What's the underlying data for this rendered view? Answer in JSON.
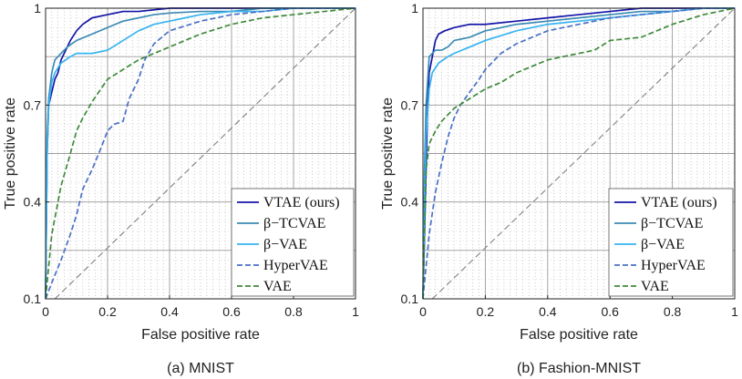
{
  "chart_data": [
    {
      "type": "line",
      "caption": "(a) MNIST",
      "xlabel": "False positive rate",
      "ylabel": "True positive rate",
      "xlim": [
        0,
        1
      ],
      "ylim": [
        0.1,
        1
      ],
      "xticks": [
        0,
        0.2,
        0.4,
        0.6,
        0.8,
        1
      ],
      "xtick_labels": [
        "0",
        "0.2",
        "0.4",
        "0.6",
        "0.8",
        "1"
      ],
      "yticks": [
        0.1,
        0.4,
        0.7,
        1
      ],
      "ytick_labels": [
        "0.1",
        "0.4",
        "0.7",
        "1"
      ],
      "grid": true,
      "legend_position": "bottom-right",
      "diagonal": true,
      "series": [
        {
          "name": "VTAE (ours)",
          "color": "#1414a8",
          "dash": "solid",
          "x": [
            0,
            0.005,
            0.01,
            0.02,
            0.03,
            0.04,
            0.05,
            0.06,
            0.08,
            0.1,
            0.12,
            0.15,
            0.2,
            0.25,
            0.3,
            0.4,
            0.5,
            0.6,
            0.7,
            0.8,
            0.9,
            1.0
          ],
          "y": [
            0.1,
            0.55,
            0.7,
            0.74,
            0.78,
            0.8,
            0.84,
            0.86,
            0.9,
            0.93,
            0.95,
            0.97,
            0.98,
            0.99,
            0.99,
            1.0,
            1.0,
            1.0,
            1.0,
            1.0,
            1.0,
            1.0
          ]
        },
        {
          "name": "β−TCVAE",
          "color": "#3c8ab4",
          "dash": "solid",
          "x": [
            0,
            0.005,
            0.01,
            0.02,
            0.03,
            0.05,
            0.07,
            0.1,
            0.15,
            0.2,
            0.25,
            0.3,
            0.35,
            0.4,
            0.5,
            0.6,
            0.7,
            0.8,
            0.9,
            1.0
          ],
          "y": [
            0.1,
            0.6,
            0.72,
            0.8,
            0.84,
            0.86,
            0.88,
            0.9,
            0.92,
            0.94,
            0.96,
            0.97,
            0.98,
            0.985,
            0.99,
            0.99,
            1.0,
            1.0,
            1.0,
            1.0
          ]
        },
        {
          "name": "β−VAE",
          "color": "#36b4f0",
          "dash": "solid",
          "x": [
            0,
            0.005,
            0.01,
            0.02,
            0.03,
            0.05,
            0.08,
            0.1,
            0.15,
            0.2,
            0.25,
            0.3,
            0.35,
            0.4,
            0.45,
            0.5,
            0.6,
            0.7,
            0.8,
            0.9,
            1.0
          ],
          "y": [
            0.1,
            0.55,
            0.7,
            0.77,
            0.8,
            0.83,
            0.85,
            0.86,
            0.86,
            0.87,
            0.9,
            0.93,
            0.95,
            0.96,
            0.97,
            0.98,
            0.99,
            0.99,
            1.0,
            1.0,
            1.0
          ]
        },
        {
          "name": "HyperVAE",
          "color": "#4a70c6",
          "dash": "dashed",
          "x": [
            0,
            0.02,
            0.05,
            0.08,
            0.1,
            0.12,
            0.15,
            0.18,
            0.2,
            0.22,
            0.25,
            0.27,
            0.3,
            0.32,
            0.35,
            0.4,
            0.5,
            0.6,
            0.7,
            0.8,
            0.9,
            1.0
          ],
          "y": [
            0.1,
            0.15,
            0.22,
            0.3,
            0.36,
            0.44,
            0.5,
            0.57,
            0.62,
            0.64,
            0.65,
            0.72,
            0.78,
            0.84,
            0.89,
            0.93,
            0.96,
            0.98,
            0.99,
            1.0,
            1.0,
            1.0
          ]
        },
        {
          "name": "VAE",
          "color": "#3e8a3a",
          "dash": "dashed",
          "x": [
            0,
            0.02,
            0.05,
            0.08,
            0.1,
            0.12,
            0.15,
            0.2,
            0.25,
            0.3,
            0.35,
            0.4,
            0.45,
            0.5,
            0.6,
            0.7,
            0.8,
            0.9,
            1.0
          ],
          "y": [
            0.1,
            0.3,
            0.45,
            0.55,
            0.62,
            0.66,
            0.71,
            0.78,
            0.81,
            0.84,
            0.86,
            0.88,
            0.9,
            0.92,
            0.95,
            0.97,
            0.98,
            0.99,
            1.0
          ]
        }
      ]
    },
    {
      "type": "line",
      "caption": "(b) Fashion-MNIST",
      "xlabel": "False positive rate",
      "ylabel": "True positive rate",
      "xlim": [
        0,
        1
      ],
      "ylim": [
        0.1,
        1
      ],
      "xticks": [
        0,
        0.2,
        0.4,
        0.6,
        0.8,
        1
      ],
      "xtick_labels": [
        "0",
        "0.2",
        "0.4",
        "0.6",
        "0.8",
        "1"
      ],
      "yticks": [
        0.1,
        0.4,
        0.7,
        1
      ],
      "ytick_labels": [
        "0.1",
        "0.4",
        "0.7",
        "1"
      ],
      "grid": true,
      "legend_position": "bottom-right",
      "diagonal": true,
      "series": [
        {
          "name": "VTAE (ours)",
          "color": "#1414a8",
          "dash": "solid",
          "x": [
            0,
            0.005,
            0.01,
            0.015,
            0.02,
            0.03,
            0.04,
            0.05,
            0.07,
            0.1,
            0.15,
            0.2,
            0.3,
            0.4,
            0.5,
            0.6,
            0.7,
            0.8,
            0.9,
            1.0
          ],
          "y": [
            0.1,
            0.3,
            0.5,
            0.7,
            0.8,
            0.85,
            0.9,
            0.92,
            0.93,
            0.94,
            0.95,
            0.95,
            0.96,
            0.97,
            0.98,
            0.99,
            1.0,
            1.0,
            1.0,
            1.0
          ]
        },
        {
          "name": "β−TCVAE",
          "color": "#3c8ab4",
          "dash": "solid",
          "x": [
            0,
            0.005,
            0.01,
            0.02,
            0.04,
            0.06,
            0.08,
            0.1,
            0.15,
            0.2,
            0.25,
            0.3,
            0.4,
            0.5,
            0.6,
            0.7,
            0.8,
            0.9,
            1.0
          ],
          "y": [
            0.1,
            0.5,
            0.7,
            0.85,
            0.87,
            0.87,
            0.88,
            0.9,
            0.91,
            0.93,
            0.94,
            0.95,
            0.96,
            0.97,
            0.98,
            0.99,
            0.99,
            1.0,
            1.0
          ]
        },
        {
          "name": "β−VAE",
          "color": "#36b4f0",
          "dash": "solid",
          "x": [
            0,
            0.005,
            0.01,
            0.02,
            0.03,
            0.05,
            0.08,
            0.1,
            0.15,
            0.2,
            0.3,
            0.4,
            0.5,
            0.6,
            0.7,
            0.8,
            0.9,
            1.0
          ],
          "y": [
            0.1,
            0.4,
            0.6,
            0.75,
            0.8,
            0.83,
            0.85,
            0.86,
            0.88,
            0.9,
            0.93,
            0.95,
            0.96,
            0.97,
            0.98,
            0.99,
            1.0,
            1.0
          ]
        },
        {
          "name": "HyperVAE",
          "color": "#4a70c6",
          "dash": "dashed",
          "x": [
            0,
            0.02,
            0.04,
            0.06,
            0.08,
            0.1,
            0.12,
            0.15,
            0.18,
            0.2,
            0.25,
            0.3,
            0.35,
            0.4,
            0.5,
            0.6,
            0.7,
            0.8,
            0.9,
            1.0
          ],
          "y": [
            0.1,
            0.3,
            0.43,
            0.52,
            0.6,
            0.66,
            0.7,
            0.74,
            0.78,
            0.81,
            0.86,
            0.89,
            0.91,
            0.93,
            0.95,
            0.97,
            0.98,
            0.99,
            1.0,
            1.0
          ]
        },
        {
          "name": "VAE",
          "color": "#3e8a3a",
          "dash": "dashed",
          "x": [
            0,
            0.01,
            0.02,
            0.04,
            0.06,
            0.08,
            0.1,
            0.15,
            0.2,
            0.25,
            0.3,
            0.35,
            0.4,
            0.5,
            0.55,
            0.6,
            0.7,
            0.8,
            0.9,
            1.0
          ],
          "y": [
            0.1,
            0.5,
            0.58,
            0.62,
            0.65,
            0.67,
            0.69,
            0.72,
            0.75,
            0.77,
            0.8,
            0.82,
            0.84,
            0.86,
            0.87,
            0.9,
            0.91,
            0.95,
            0.98,
            1.0
          ]
        }
      ]
    }
  ]
}
